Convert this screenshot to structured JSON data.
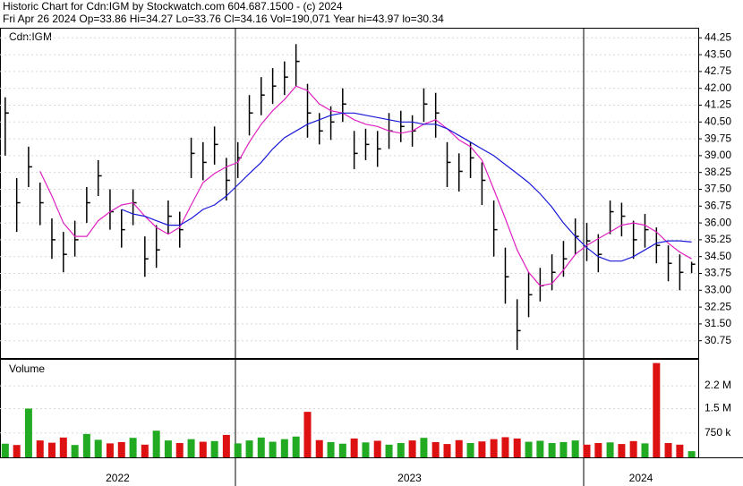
{
  "chart_data": {
    "type": "ohlc",
    "title": "Historic Chart for Cdn:IGM by Stockwatch.com 604.687.1500 - (c) 2024",
    "subtitle": "Fri Apr 26 2024   Op=33.86   Hi=34.27   Lo=33.76   Cl=34.16   Vol=190,071   Year hi=43.97   lo=30.34",
    "symbol_label": "Cdn:IGM",
    "x": [
      2022.339,
      2022.372,
      2022.406,
      2022.439,
      2022.473,
      2022.506,
      2022.539,
      2022.573,
      2022.606,
      2022.64,
      2022.673,
      2022.706,
      2022.74,
      2022.773,
      2022.807,
      2022.84,
      2022.873,
      2022.907,
      2022.94,
      2022.974,
      2023.007,
      2023.04,
      2023.074,
      2023.107,
      2023.141,
      2023.174,
      2023.207,
      2023.241,
      2023.274,
      2023.308,
      2023.341,
      2023.374,
      2023.408,
      2023.441,
      2023.475,
      2023.508,
      2023.541,
      2023.575,
      2023.608,
      2023.642,
      2023.675,
      2023.708,
      2023.742,
      2023.775,
      2023.809,
      2023.842,
      2023.875,
      2023.909,
      2023.942,
      2023.976,
      2024.009,
      2024.042,
      2024.076,
      2024.109,
      2024.143,
      2024.176,
      2024.209,
      2024.243,
      2024.276,
      2024.31
    ],
    "high": [
      41.6,
      38.0,
      39.4,
      37.8,
      36.2,
      35.6,
      36.1,
      37.6,
      38.8,
      37.5,
      36.6,
      37.5,
      35.4,
      35.9,
      37.0,
      36.5,
      39.8,
      39.6,
      40.3,
      38.9,
      39.6,
      41.7,
      42.5,
      42.9,
      43.2,
      43.97,
      42.2,
      40.9,
      41.2,
      42.0,
      40.1,
      40.2,
      40.1,
      40.9,
      41.0,
      40.8,
      42.0,
      41.8,
      39.6,
      39.1,
      39.6,
      38.7,
      37.0,
      34.9,
      32.6,
      33.8,
      34.0,
      34.6,
      35.2,
      36.2,
      36.0,
      35.5,
      37.0,
      36.9,
      36.1,
      36.4,
      35.8,
      35.0,
      34.6,
      34.27
    ],
    "low": [
      39.0,
      35.6,
      37.6,
      35.9,
      34.4,
      33.8,
      34.5,
      36.0,
      37.2,
      35.7,
      34.9,
      35.9,
      33.6,
      34.0,
      35.5,
      34.9,
      38.0,
      37.9,
      38.6,
      37.0,
      38.0,
      39.9,
      40.8,
      41.3,
      41.7,
      42.1,
      39.8,
      39.5,
      39.7,
      40.5,
      38.4,
      38.8,
      38.5,
      39.3,
      39.6,
      39.4,
      40.5,
      39.8,
      37.6,
      37.4,
      38.0,
      36.8,
      34.5,
      32.4,
      30.34,
      31.8,
      32.5,
      33.0,
      33.6,
      34.6,
      34.3,
      33.8,
      35.5,
      35.4,
      34.4,
      34.9,
      34.2,
      33.4,
      33.0,
      33.76
    ],
    "close": [
      40.9,
      36.9,
      38.5,
      36.9,
      35.25,
      34.6,
      35.25,
      36.9,
      38.1,
      36.5,
      35.7,
      36.9,
      34.4,
      34.8,
      36.3,
      35.7,
      39.1,
      38.7,
      39.5,
      37.9,
      38.9,
      40.9,
      41.7,
      42.1,
      42.5,
      43.2,
      40.9,
      40.1,
      40.5,
      41.3,
      39.1,
      39.5,
      39.3,
      40.1,
      40.3,
      40.1,
      41.3,
      40.9,
      38.7,
      38.3,
      38.9,
      37.9,
      35.7,
      33.6,
      31.2,
      32.8,
      33.2,
      33.8,
      34.4,
      35.4,
      35.2,
      34.6,
      36.5,
      36.3,
      35.25,
      35.7,
      35.0,
      34.2,
      33.8,
      34.16
    ],
    "color": "#000000",
    "moving_averages": [
      {
        "color": "#e020c0",
        "values": [
          null,
          null,
          null,
          38.3,
          37.2,
          36.0,
          35.4,
          35.4,
          36.1,
          36.5,
          36.8,
          36.9,
          36.3,
          35.8,
          35.5,
          35.8,
          36.8,
          37.8,
          38.2,
          38.5,
          38.7,
          39.6,
          40.4,
          41.0,
          41.5,
          42.1,
          41.9,
          41.3,
          41.0,
          40.9,
          40.6,
          40.4,
          40.3,
          40.1,
          40.0,
          40.1,
          40.4,
          40.6,
          40.2,
          39.7,
          39.4,
          38.8,
          37.5,
          36.2,
          34.8,
          33.8,
          33.2,
          33.3,
          33.9,
          34.6,
          35.0,
          35.3,
          35.6,
          35.9,
          36.0,
          35.9,
          35.6,
          35.1,
          34.7,
          34.4
        ]
      },
      {
        "color": "#1818d8",
        "values": [
          null,
          null,
          null,
          null,
          null,
          null,
          null,
          null,
          null,
          null,
          36.6,
          36.4,
          36.3,
          36.1,
          35.9,
          35.9,
          36.2,
          36.6,
          36.8,
          37.2,
          37.7,
          38.2,
          38.7,
          39.3,
          39.8,
          40.1,
          40.4,
          40.6,
          40.8,
          40.9,
          40.9,
          40.8,
          40.7,
          40.6,
          40.5,
          40.5,
          40.4,
          40.4,
          40.2,
          39.9,
          39.6,
          39.3,
          39.0,
          38.6,
          38.2,
          37.8,
          37.3,
          36.7,
          36.0,
          35.4,
          34.9,
          34.5,
          34.3,
          34.3,
          34.5,
          34.8,
          35.1,
          35.2,
          35.2,
          35.15
        ]
      }
    ],
    "xlim": [
      2022.324,
      2024.329
    ],
    "xticks": [
      {
        "value": 2022,
        "label": "2022"
      },
      {
        "value": 2023,
        "label": "2023"
      },
      {
        "value": 2024,
        "label": "2024"
      }
    ],
    "ylim": [
      29.98,
      44.66
    ],
    "yticks": [
      30.75,
      {
        "value": 31.5,
        "label": "31.50"
      },
      32.25,
      {
        "value": 33,
        "label": "33.00"
      },
      33.75,
      {
        "value": 34.5,
        "label": "34.50"
      },
      35.25,
      {
        "value": 36,
        "label": "36.00"
      },
      36.75,
      {
        "value": 37.5,
        "label": "37.50"
      },
      38.25,
      {
        "value": 39,
        "label": "39.00"
      },
      39.75,
      {
        "value": 40.5,
        "label": "40.50"
      },
      41.25,
      {
        "value": 42,
        "label": "42.00"
      },
      42.75,
      {
        "value": 43.5,
        "label": "43.50"
      },
      44.25
    ],
    "grid": true,
    "volume": {
      "label": "Volume",
      "values": [
        420000,
        380000,
        1500000,
        520000,
        450000,
        610000,
        380000,
        720000,
        540000,
        430000,
        470000,
        600000,
        390000,
        820000,
        520000,
        440000,
        560000,
        480000,
        500000,
        690000,
        430000,
        520000,
        610000,
        480000,
        560000,
        640000,
        1400000,
        530000,
        470000,
        420000,
        580000,
        460000,
        510000,
        390000,
        440000,
        520000,
        600000,
        470000,
        410000,
        530000,
        440000,
        490000,
        560000,
        620000,
        580000,
        480000,
        510000,
        440000,
        470000,
        520000,
        390000,
        440000,
        460000,
        410000,
        500000,
        430000,
        2900000,
        440000,
        390000,
        190071
      ],
      "ylim": [
        0,
        3000000
      ],
      "yticks": [
        {
          "value": 750000,
          "label": "750 k"
        },
        {
          "value": 1500000,
          "label": "1.5 M"
        },
        {
          "value": 2200000,
          "label": "2.2 M"
        }
      ],
      "up_color": "#22aa22",
      "down_color": "#dd1111"
    }
  }
}
